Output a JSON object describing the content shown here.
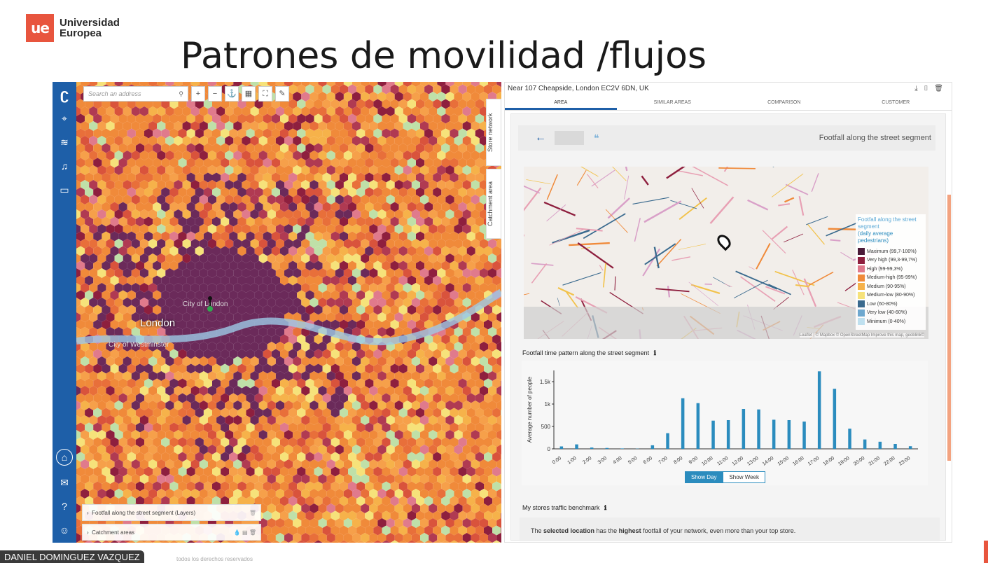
{
  "brand": {
    "logo_mark": "ue",
    "line1": "Universidad",
    "line2": "Europea"
  },
  "slide": {
    "title": "Patrones de movilidad /flujos"
  },
  "map_app": {
    "search_placeholder": "Search an address",
    "tools": [
      "+",
      "−",
      "⚓",
      "▦",
      "⛶",
      "✎"
    ],
    "side_tabs": [
      "Store network",
      "Catchment area"
    ],
    "labels": {
      "london": "London",
      "city": "City of London",
      "westminster": "City of Westminster"
    },
    "layers": [
      "Footfall along the street segment (Layers)",
      "Catchment areas"
    ]
  },
  "panel": {
    "address": "Near 107 Cheapside, London EC2V 6DN, UK",
    "header_icons": [
      "download-icon",
      "pdf-icon",
      "trash-icon"
    ],
    "tabs": [
      "AREA",
      "SIMILAR AREAS",
      "COMPARISON",
      "CUSTOMER"
    ],
    "sub_title": "Footfall along the street segment",
    "legend": {
      "title": "Footfall along the street segment",
      "subtitle": "(daily average pedestrians)",
      "items": [
        {
          "label": "Maximum (99,7-100%)",
          "color": "#4a1a38"
        },
        {
          "label": "Very high (99,3-99,7%)",
          "color": "#8e1f3e"
        },
        {
          "label": "High (99-99,3%)",
          "color": "#e07a8c"
        },
        {
          "label": "Medium-high (95-99%)",
          "color": "#f08a3a"
        },
        {
          "label": "Medium (90-95%)",
          "color": "#f6b24a"
        },
        {
          "label": "Medium-low (80-90%)",
          "color": "#f6e27a"
        },
        {
          "label": "Low (60-80%)",
          "color": "#3a6a8e"
        },
        {
          "label": "Very low (40-60%)",
          "color": "#6ea8cf"
        },
        {
          "label": "Minimum (0-40%)",
          "color": "#bfe0ef"
        }
      ]
    },
    "attribution": "Leaflet | © Mapbox © OpenStreetMap Improve this map, geoblink©",
    "chart_section_title": "Footfall time pattern along the street segment",
    "toggle": {
      "day": "Show Day",
      "week": "Show Week"
    },
    "benchmark_title": "My stores traffic benchmark",
    "benchmark_text_parts": [
      "The ",
      "selected location",
      " has the ",
      "highest",
      " footfall of your network, even more than your top store."
    ]
  },
  "chart_data": {
    "type": "bar",
    "ylabel": "Average number of people",
    "ylim": [
      0,
      1750
    ],
    "yticks": [
      {
        "v": 0,
        "t": "0"
      },
      {
        "v": 500,
        "t": "500"
      },
      {
        "v": 1000,
        "t": "1k"
      },
      {
        "v": 1500,
        "t": "1.5k"
      }
    ],
    "categories": [
      "0:00",
      "1:00",
      "2:00",
      "3:00",
      "4:00",
      "5:00",
      "6:00",
      "7:00",
      "8:00",
      "9:00",
      "10:00",
      "11:00",
      "12:00",
      "13:00",
      "14:00",
      "15:00",
      "16:00",
      "17:00",
      "18:00",
      "19:00",
      "20:00",
      "21:00",
      "22:00",
      "23:00"
    ],
    "values": [
      55,
      100,
      30,
      20,
      10,
      5,
      80,
      350,
      1130,
      1020,
      630,
      640,
      890,
      880,
      650,
      640,
      610,
      1730,
      1340,
      450,
      210,
      160,
      110,
      60
    ],
    "color": "#2b8cbe"
  },
  "presenter": {
    "name": "DANIEL DOMINGUEZ VAZQUEZ",
    "note": "todos los derechos reservados"
  }
}
